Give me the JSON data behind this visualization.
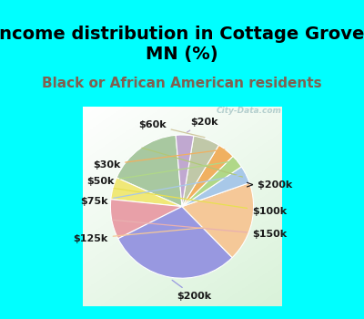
{
  "title": "Income distribution in Cottage Grove,\nMN (%)",
  "subtitle": "Black or African American residents",
  "labels": [
    "> $200k",
    "$100k",
    "$150k",
    "$200k",
    "$125k",
    "$75k",
    "$50k",
    "$30k",
    "$60k",
    "$20k"
  ],
  "sizes": [
    17,
    5,
    9,
    30,
    18,
    4,
    3,
    4,
    6,
    4
  ],
  "colors": [
    "#a8c8a0",
    "#f0e878",
    "#e8a0a8",
    "#9898e0",
    "#f5c898",
    "#a8c8e8",
    "#b0d888",
    "#f0b060",
    "#c0c8a8",
    "#c0a8d0"
  ],
  "background_cyan": "#00ffff",
  "title_fontsize": 14,
  "subtitle_fontsize": 11,
  "subtitle_color": "#806050",
  "startangle": 95,
  "label_fontsize": 8
}
